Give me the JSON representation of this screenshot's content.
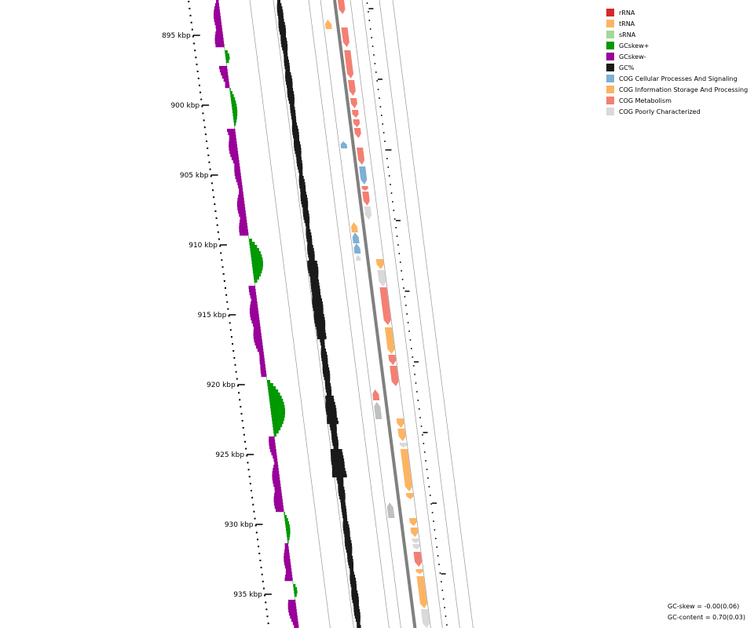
{
  "legend": {
    "items": [
      {
        "label": "rRNA",
        "color": "#d62728"
      },
      {
        "label": "tRNA",
        "color": "#fdb462"
      },
      {
        "label": "sRNA",
        "color": "#a1d99b"
      },
      {
        "label": "GCskew+",
        "color": "#009900"
      },
      {
        "label": "GCskew-",
        "color": "#990099"
      },
      {
        "label": "GC%",
        "color": "#1a1a1a"
      },
      {
        "label": "COG Cellular Processes And Signaling",
        "color": "#7eb0d5"
      },
      {
        "label": "COG Information Storage And Processing",
        "color": "#fdb462"
      },
      {
        "label": "COG Metabolism",
        "color": "#f47f72"
      },
      {
        "label": "COG Poorly Characterized",
        "color": "#d9d9d9"
      }
    ]
  },
  "axis": {
    "labels": [
      "895 kbp",
      "900 kbp",
      "905 kbp",
      "910 kbp",
      "915 kbp",
      "920 kbp",
      "925 kbp",
      "930 kbp",
      "935 kbp"
    ]
  },
  "stats": {
    "gc_skew": "GC-skew = -0.00(0.06)",
    "gc_content": "GC-content = 0.70(0.03)"
  },
  "colors": {
    "gc_skew_pos": "#009900",
    "gc_skew_neg": "#990099",
    "gc_content": "#1a1a1a",
    "backbone": "#808080",
    "guide": "#999999",
    "cds_grey": "#c0c0c0"
  }
}
